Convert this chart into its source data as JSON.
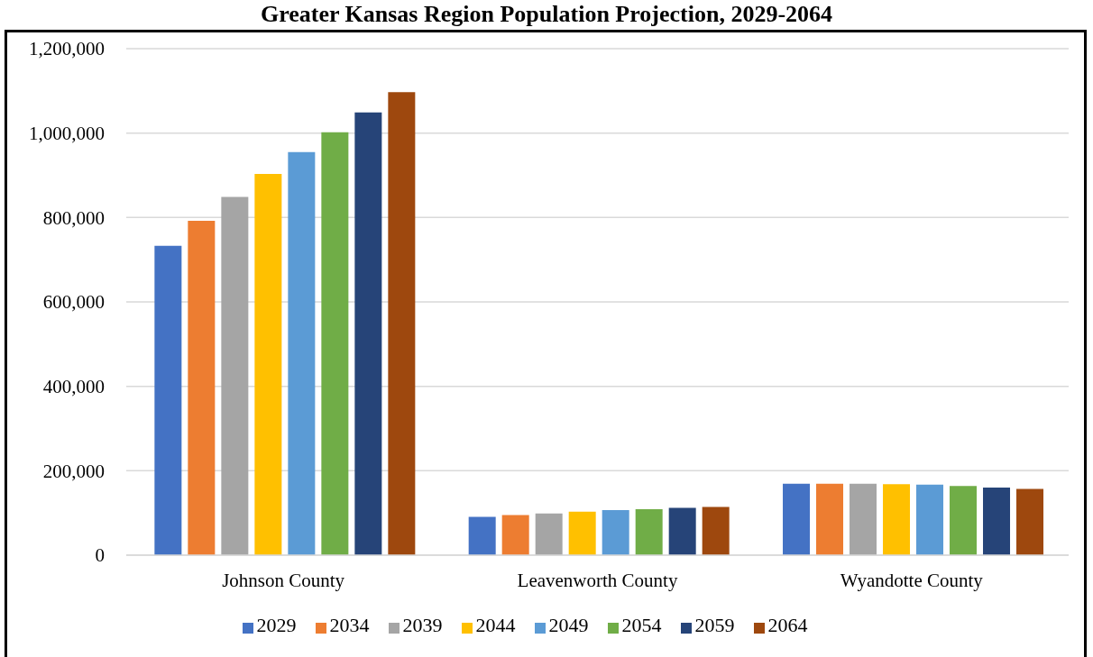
{
  "chart_data": {
    "type": "bar",
    "title": "Greater Kansas Region Population Projection, 2029-2064",
    "categories": [
      "Johnson County",
      "Leavenworth County",
      "Wyandotte County"
    ],
    "series": [
      {
        "name": "2029",
        "color": "#4472c4",
        "values": [
          733000,
          91000,
          169000
        ]
      },
      {
        "name": "2034",
        "color": "#ed7d31",
        "values": [
          792000,
          95000,
          169000
        ]
      },
      {
        "name": "2039",
        "color": "#a5a5a5",
        "values": [
          849000,
          99000,
          169000
        ]
      },
      {
        "name": "2044",
        "color": "#ffc000",
        "values": [
          903000,
          103000,
          168000
        ]
      },
      {
        "name": "2049",
        "color": "#5b9bd5",
        "values": [
          955000,
          107000,
          167000
        ]
      },
      {
        "name": "2054",
        "color": "#70ad47",
        "values": [
          1002000,
          109000,
          164000
        ]
      },
      {
        "name": "2059",
        "color": "#264478",
        "values": [
          1049000,
          112000,
          160000
        ]
      },
      {
        "name": "2064",
        "color": "#9e480e",
        "values": [
          1097000,
          114000,
          157000
        ]
      }
    ],
    "ylim": [
      0,
      1200000
    ],
    "yticks": [
      0,
      {
        "value": 200000,
        "label": "200,000"
      },
      {
        "value": 400000,
        "label": "400,000"
      },
      {
        "value": 600000,
        "label": "600,000"
      },
      {
        "value": 800000,
        "label": "800,000"
      },
      {
        "value": 1000000,
        "label": "1,000,000"
      },
      {
        "value": 1200000,
        "label": "1,200,000"
      }
    ],
    "grid": "y",
    "legend": "bottom"
  }
}
